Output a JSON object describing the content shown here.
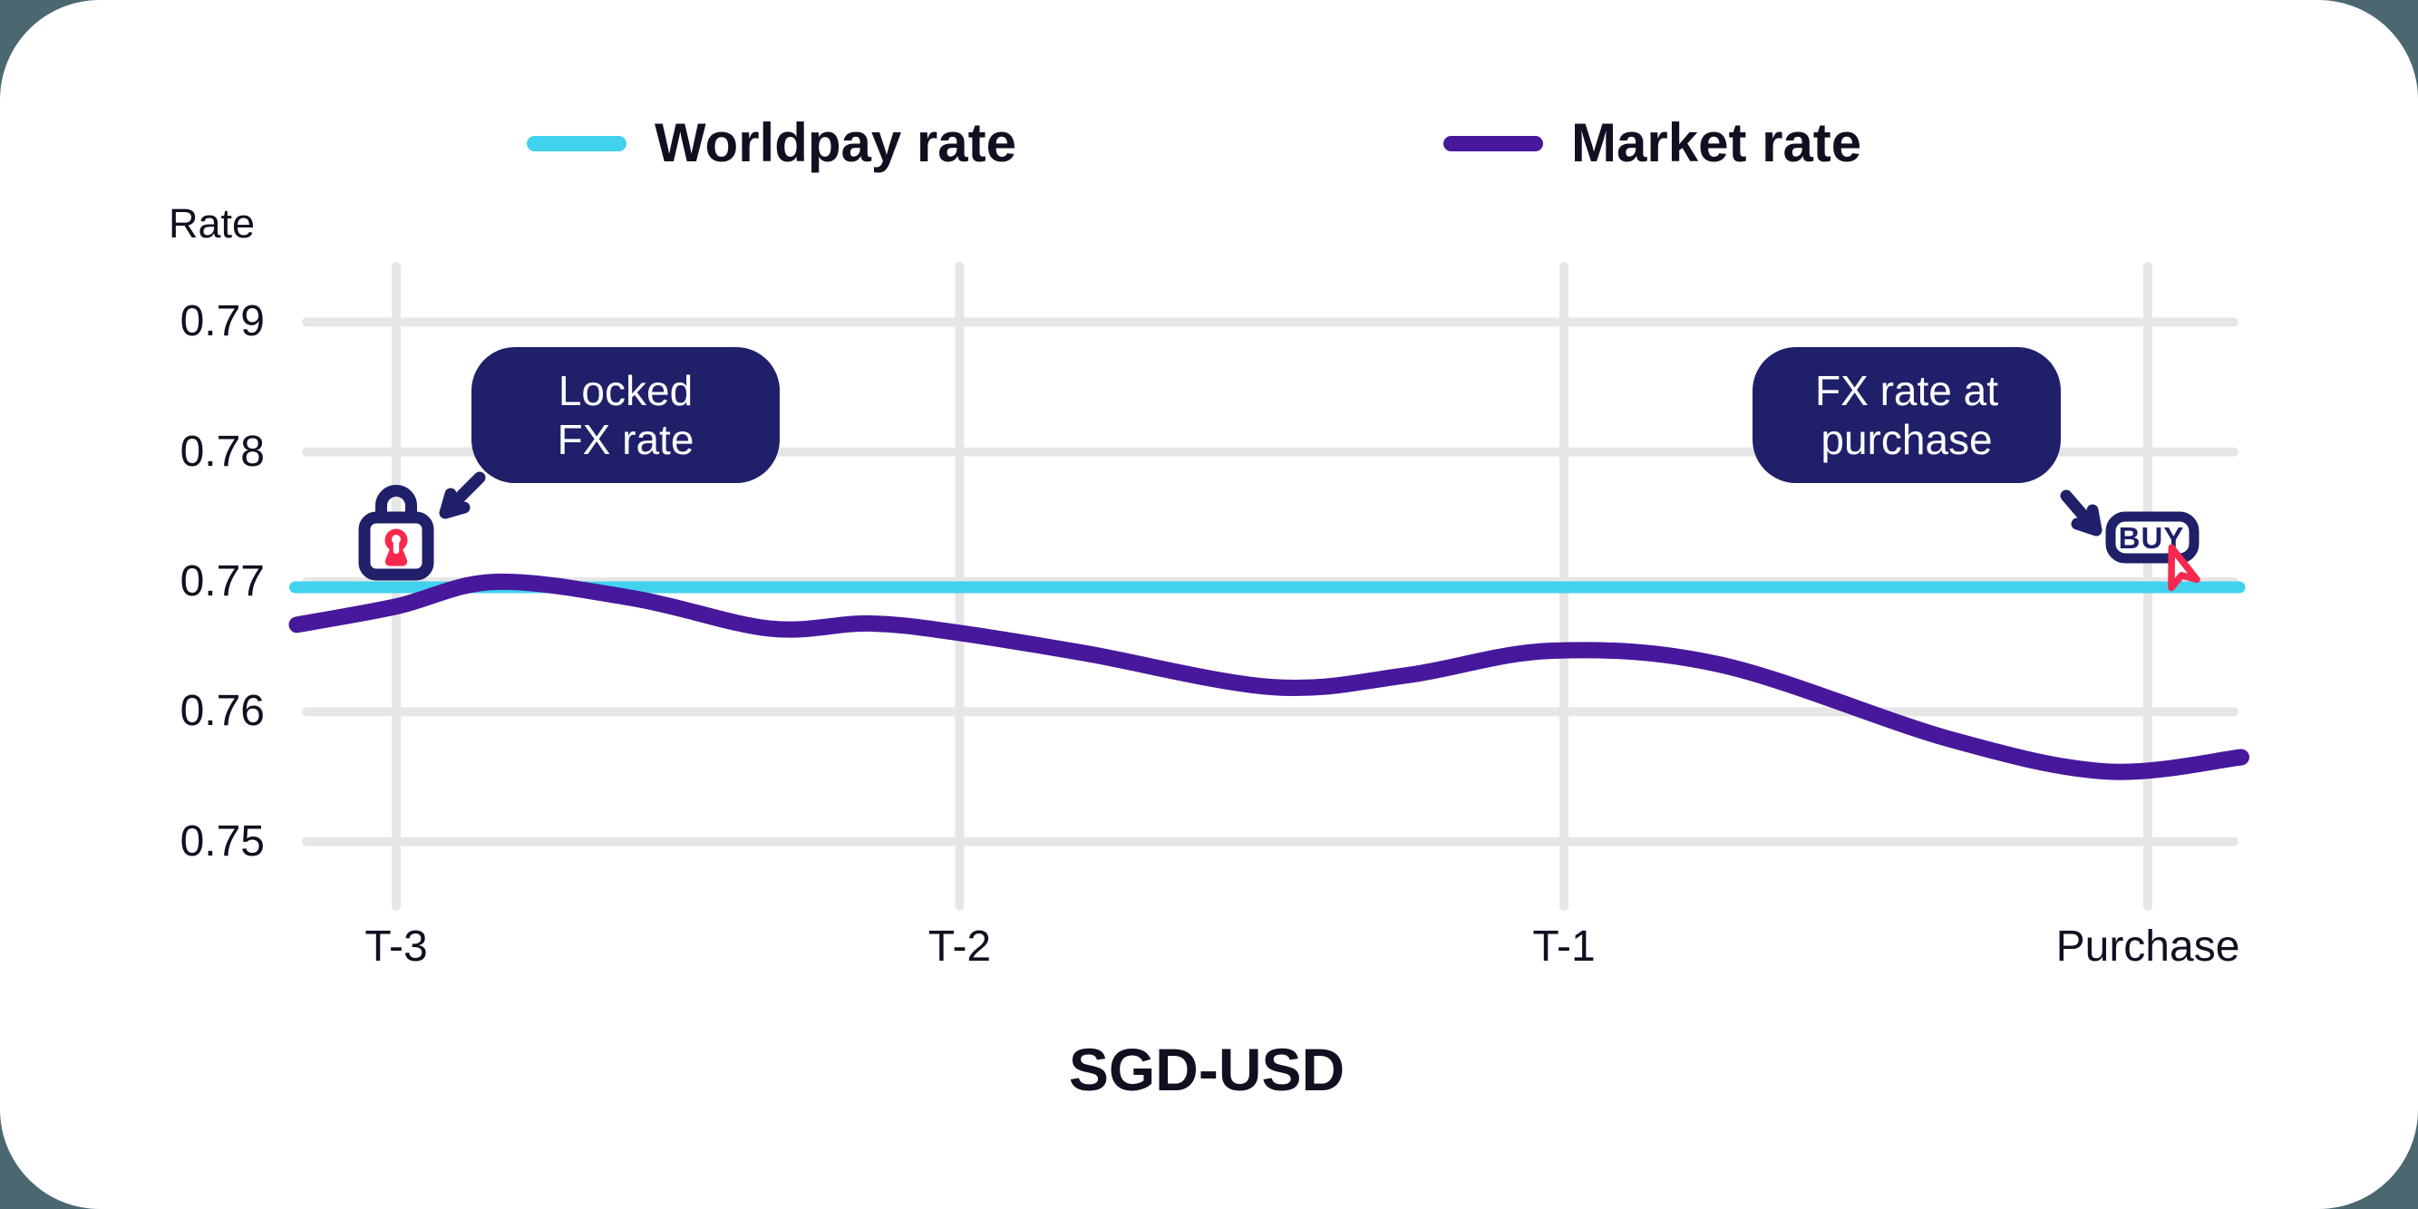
{
  "page": {
    "background_color": "#4B6871",
    "card_color": "#FFFFFF",
    "text_color": "#101020",
    "gridline_color": "#E6E6E6",
    "navy_color": "#1F2069",
    "red_color": "#F9284E"
  },
  "legend": {
    "items": [
      {
        "label": "Worldpay rate",
        "color": "#41D2EE"
      },
      {
        "label": "Market rate",
        "color": "#47189C"
      }
    ]
  },
  "chart_data": {
    "type": "line",
    "title": "SGD-USD",
    "ylabel": "Rate",
    "xlabel": "",
    "grid": true,
    "legend_position": "top",
    "x_tick_labels": [
      "T-3",
      "T-2",
      "T-1",
      "Purchase"
    ],
    "x_tick_positions": [
      0,
      0.965,
      2,
      3
    ],
    "y_tick_labels": [
      "0.79",
      "0.78",
      "0.77",
      "0.76",
      "0.75"
    ],
    "y_ticks": [
      0.79,
      0.78,
      0.77,
      0.76,
      0.75
    ],
    "ylim": [
      0.7454,
      0.7943
    ],
    "xlim": [
      -0.17,
      3.16
    ],
    "series": [
      {
        "name": "Worldpay rate",
        "style": "constant",
        "value": 0.77,
        "x_range": [
          -0.17,
          3.16
        ],
        "color": "#41D2EE"
      },
      {
        "name": "Market rate",
        "color": "#47189C",
        "x": [
          -0.17,
          0,
          0.17,
          0.41,
          0.64,
          0.81,
          0.96,
          1.18,
          1.5,
          1.73,
          1.98,
          2.27,
          2.66,
          2.93,
          3.16
        ],
        "values": [
          0.7667,
          0.7681,
          0.77,
          0.7687,
          0.7664,
          0.7668,
          0.7661,
          0.7645,
          0.7619,
          0.7628,
          0.7647,
          0.7636,
          0.7579,
          0.7554,
          0.7565
        ]
      }
    ]
  },
  "annotations": {
    "locked": {
      "line1": "Locked",
      "line2": "FX rate",
      "background": "#1F2069",
      "text_color": "#FFFFFF"
    },
    "purchase": {
      "line1": "FX rate at",
      "line2": "purchase",
      "background": "#1F2069",
      "text_color": "#FFFFFF"
    }
  },
  "buy_icon": {
    "label": "BUY"
  }
}
